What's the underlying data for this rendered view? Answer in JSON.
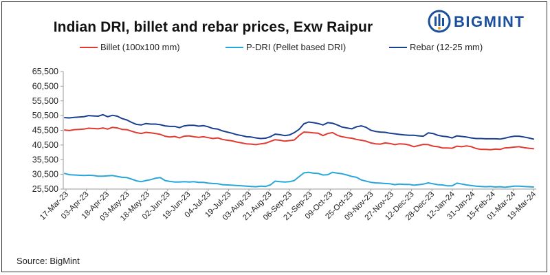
{
  "chart_data": {
    "type": "line",
    "title": "Indian DRI, billet and rebar prices, Exw Raipur",
    "source": "Source: BigMint",
    "brand": "BIGMINT",
    "ylim": [
      25500,
      65500
    ],
    "yticks": [
      "65,500",
      "60,500",
      "55,500",
      "50,500",
      "45,500",
      "40,500",
      "35,500",
      "30,500",
      "25,500"
    ],
    "ytick_values": [
      65500,
      60500,
      55500,
      50500,
      45500,
      40500,
      35500,
      30500,
      25500
    ],
    "x_labels": [
      "17-Mar-23",
      "03-Apr-23",
      "18-Apr-23",
      "03-May-23",
      "18-May-23",
      "02-Jun-23",
      "19-Jun-23",
      "04-Jul-23",
      "19-Jul-23",
      "03-Aug-23",
      "21-Aug-23",
      "06-Sep-23",
      "21-Sep-23",
      "09-Oct-23",
      "25-Oct-23",
      "09-Nov-23",
      "27-Nov-23",
      "12-Dec-23",
      "28-Dec-23",
      "12-Jan-24",
      "31-Jan-24",
      "15-Feb-24",
      "01-Mar-24",
      "19-Mar-24"
    ],
    "grid": false,
    "legend_position": "top",
    "series": [
      {
        "name": "Billet (100x100 mm)",
        "color": "#e03a32",
        "values": [
          45600,
          45400,
          45700,
          45800,
          45900,
          46200,
          46100,
          46000,
          46300,
          45900,
          46500,
          46300,
          45800,
          45700,
          45200,
          44700,
          44400,
          44800,
          44600,
          44400,
          44100,
          43500,
          43200,
          43400,
          42900,
          43500,
          43600,
          43300,
          43100,
          43300,
          43000,
          42700,
          42900,
          42400,
          42100,
          41900,
          41500,
          41200,
          40900,
          40800,
          40600,
          40900,
          41100,
          41700,
          42300,
          42100,
          41800,
          42000,
          42200,
          43700,
          44900,
          44800,
          44600,
          44500,
          43700,
          44400,
          44700,
          43800,
          43300,
          43000,
          42800,
          42400,
          42100,
          41800,
          41200,
          40900,
          40800,
          41200,
          41000,
          40600,
          40900,
          40800,
          40500,
          39900,
          40300,
          40700,
          40600,
          40100,
          39900,
          39500,
          39500,
          39400,
          40100,
          39900,
          40200,
          39900,
          39300,
          39000,
          39000,
          38900,
          39100,
          39000,
          39500,
          39600,
          39800,
          39900,
          39600,
          39400,
          39200
        ]
      },
      {
        "name": "P-DRI (Pellet based DRI)",
        "color": "#29a6d9",
        "values": [
          30800,
          30400,
          30300,
          30200,
          30100,
          30200,
          30100,
          29900,
          29900,
          30000,
          30100,
          29800,
          29500,
          29400,
          28900,
          28300,
          28000,
          28400,
          28700,
          29200,
          29400,
          28400,
          28100,
          27900,
          27900,
          28000,
          27900,
          28000,
          27800,
          27800,
          27500,
          27400,
          27300,
          27000,
          26900,
          26800,
          26700,
          26600,
          26500,
          26400,
          26300,
          26500,
          26400,
          26900,
          28200,
          28000,
          27900,
          28000,
          28400,
          29700,
          31000,
          31200,
          30900,
          30800,
          30300,
          30400,
          31200,
          30900,
          30700,
          30300,
          29800,
          29500,
          28600,
          28200,
          27800,
          27600,
          27500,
          27400,
          27300,
          27000,
          27200,
          27100,
          27100,
          26800,
          27000,
          27200,
          27600,
          27300,
          27000,
          26900,
          26600,
          26600,
          27500,
          27200,
          26900,
          26700,
          26500,
          26400,
          26300,
          26400,
          26200,
          26300,
          26100,
          26300,
          26500,
          26500,
          26400,
          26300,
          26200
        ]
      },
      {
        "name": "Rebar (12-25 mm)",
        "color": "#1b3f8f",
        "values": [
          49800,
          49700,
          49900,
          50000,
          50100,
          50500,
          50400,
          50300,
          50800,
          50100,
          50600,
          50300,
          49500,
          49000,
          48200,
          47500,
          47300,
          47800,
          47600,
          47600,
          47400,
          47000,
          46800,
          46800,
          46400,
          47000,
          47200,
          47200,
          46900,
          47100,
          46700,
          46100,
          45900,
          45300,
          44900,
          44500,
          44000,
          43700,
          43300,
          43200,
          42900,
          42700,
          42800,
          43300,
          44200,
          44000,
          43700,
          43900,
          44700,
          45800,
          47700,
          48300,
          48100,
          47800,
          47300,
          48100,
          47900,
          47300,
          46600,
          46300,
          46000,
          46700,
          47000,
          46500,
          45500,
          45100,
          44900,
          44800,
          44500,
          44300,
          44100,
          43900,
          43800,
          43800,
          43600,
          43500,
          44600,
          44400,
          43800,
          43500,
          43300,
          42900,
          43600,
          43400,
          43200,
          42900,
          42700,
          42700,
          42600,
          42600,
          42600,
          42500,
          42800,
          43200,
          43500,
          43500,
          43200,
          42900,
          42500
        ]
      }
    ]
  }
}
